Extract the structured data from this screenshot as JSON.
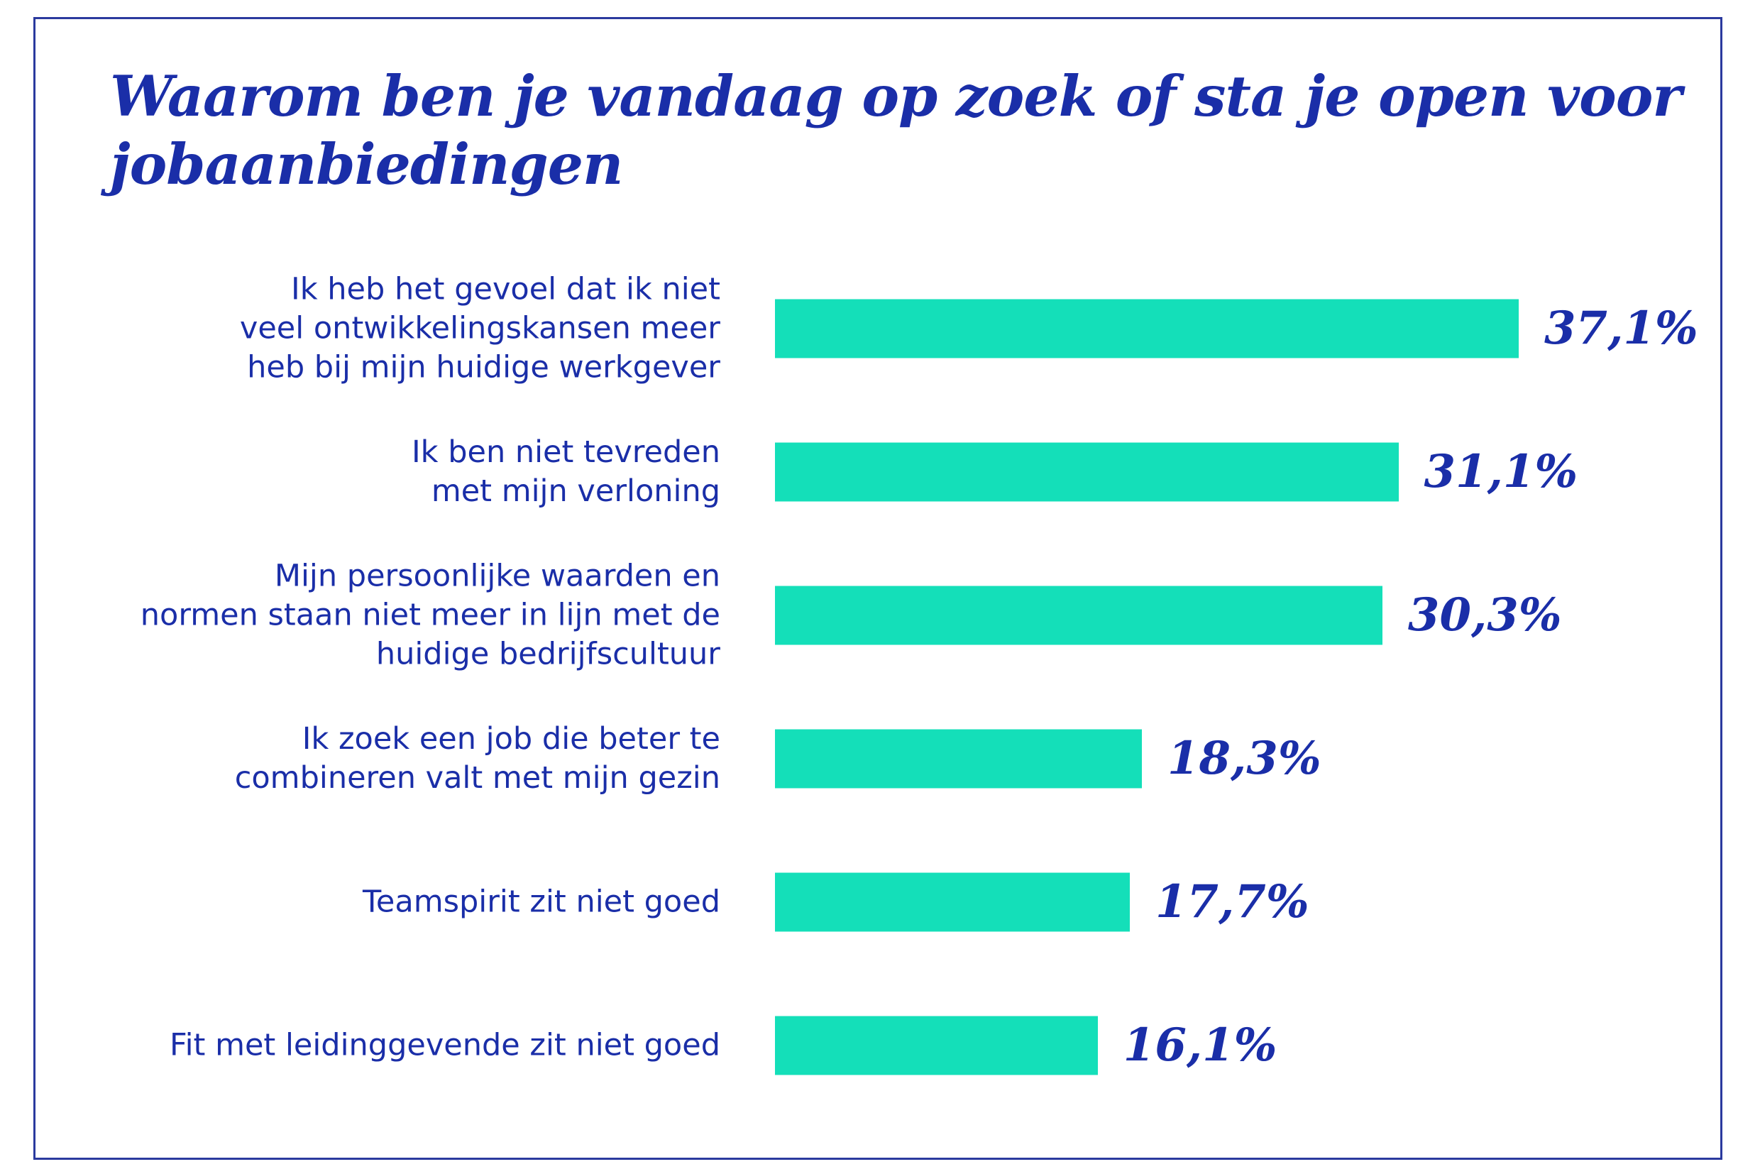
{
  "colors": {
    "bar": "#14dfb9",
    "text": "#1a2ea8",
    "frame": "#2b3a9e"
  },
  "chart_data": {
    "type": "bar",
    "orientation": "horizontal",
    "title": "Waarom ben je vandaag op zoek of sta je open voor jobaanbiedingen",
    "categories": [
      "Ik heb het gevoel dat ik niet\nveel ontwikkelingskansen meer\nheb bij mijn huidige werkgever",
      "Ik ben niet tevreden\nmet mijn verloning",
      "Mijn persoonlijke waarden en\nnormen staan niet meer in lijn met de\nhuidige bedrijfscultuur",
      "Ik zoek een job die beter te\ncombineren valt met mijn gezin",
      "Teamspirit zit niet goed",
      "Fit met leidinggevende zit niet goed"
    ],
    "values": [
      37.1,
      31.1,
      30.3,
      18.3,
      17.7,
      16.1
    ],
    "value_labels": [
      "37,1%",
      "31,1%",
      "30,3%",
      "18,3%",
      "17,7%",
      "16,1%"
    ],
    "xlim": [
      0,
      37.1
    ],
    "grid": false,
    "legend": "none"
  }
}
